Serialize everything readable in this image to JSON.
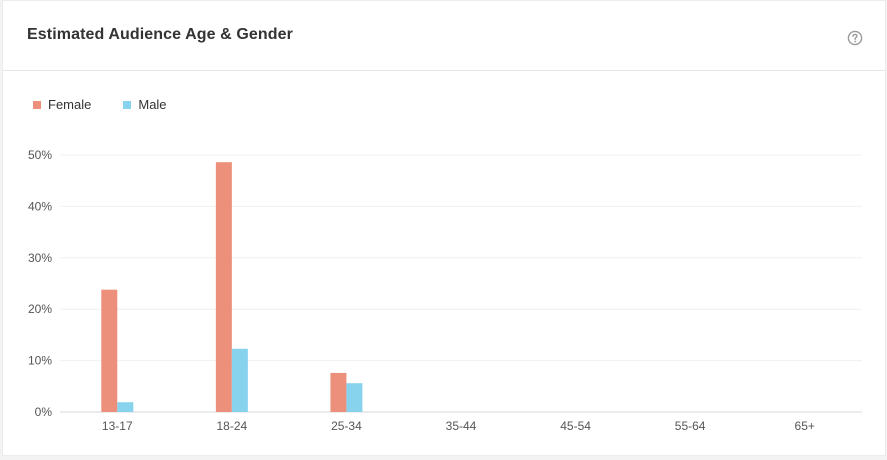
{
  "card": {
    "title": "Estimated Audience Age & Gender",
    "help_icon": "question-circle-icon"
  },
  "chart_data": {
    "type": "bar",
    "title": "",
    "xlabel": "",
    "ylabel": "",
    "categories": [
      "13-17",
      "18-24",
      "25-34",
      "35-44",
      "45-54",
      "55-64",
      "65+"
    ],
    "series": [
      {
        "name": "Female",
        "color": "#ec907b",
        "values": [
          23.8,
          48.6,
          7.6,
          0,
          0,
          0,
          0
        ]
      },
      {
        "name": "Male",
        "color": "#87d2ed",
        "values": [
          1.9,
          12.3,
          5.6,
          0,
          0,
          0,
          0
        ]
      }
    ],
    "ylim": [
      0,
      50
    ],
    "yticks": [
      "0%",
      "10%",
      "20%",
      "30%",
      "40%",
      "50%"
    ],
    "grid": true,
    "legend_position": "top-left"
  }
}
